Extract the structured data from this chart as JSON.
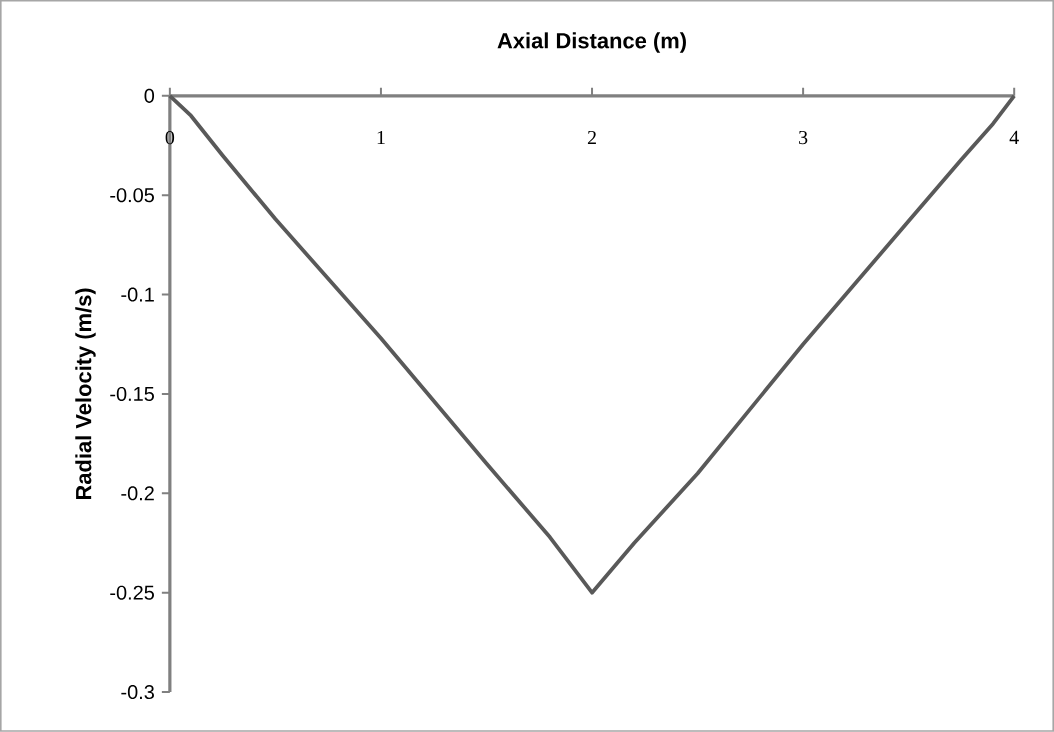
{
  "chart_data": {
    "type": "line",
    "xlabel": "Axial Distance (m)",
    "ylabel": "Radial Velocity (m/s)",
    "x": [
      0,
      0.1,
      0.25,
      0.5,
      1,
      1.5,
      1.8,
      2,
      2.2,
      2.5,
      3,
      3.5,
      3.75,
      3.9,
      4
    ],
    "series": [
      {
        "color": "#595959",
        "values": [
          0,
          -0.01,
          -0.03,
          -0.062,
          -0.122,
          -0.185,
          -0.222,
          -0.25,
          -0.225,
          -0.19,
          -0.125,
          -0.063,
          -0.032,
          -0.014,
          0
        ]
      }
    ],
    "xlim": [
      0,
      4
    ],
    "xticks": [
      0,
      1,
      2,
      3,
      4
    ],
    "ylim": [
      -0.3,
      0
    ],
    "yticks": [
      -0.3,
      -0.25,
      -0.2,
      -0.15,
      -0.1,
      -0.05,
      0
    ],
    "grid": false,
    "marker": "none",
    "line_style": "solid"
  }
}
